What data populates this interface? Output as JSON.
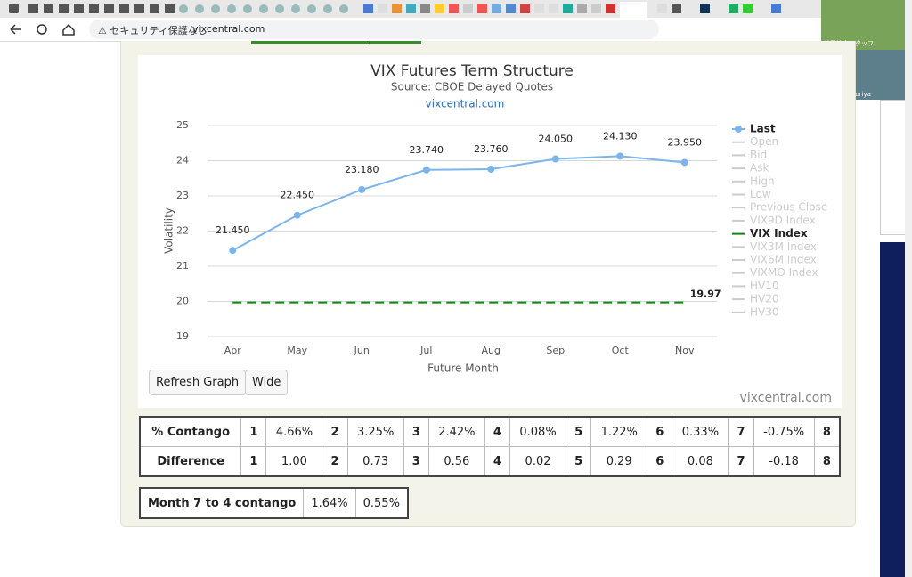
{
  "browser": {
    "security": "セキュリティ保護なし",
    "address": "vixcentral.com"
  },
  "video_call": {
    "participants": [
      "普及協会スタッフ",
      "Fumiaki Moriya"
    ]
  },
  "chart_data": {
    "type": "line",
    "title": "VIX Futures Term Structure",
    "subtitle": "Source: CBOE Delayed Quotes",
    "link": "vixcentral.com",
    "x_label": "Future Month",
    "y_label": "Volatility",
    "categories": [
      "Apr",
      "May",
      "Jun",
      "Jul",
      "Aug",
      "Sep",
      "Oct",
      "Nov"
    ],
    "ylim": [
      19,
      25
    ],
    "yticks": [
      19,
      20,
      21,
      22,
      23,
      24,
      25
    ],
    "grid": true,
    "series": [
      {
        "name": "Last",
        "color": "#7cb5ec",
        "visible": true,
        "dash": false,
        "data_labels": "all",
        "values": [
          21.45,
          22.45,
          23.18,
          23.74,
          23.76,
          24.05,
          24.13,
          23.95
        ],
        "value_labels": [
          "21.450",
          "22.450",
          "23.180",
          "23.740",
          "23.760",
          "24.050",
          "24.130",
          "23.950"
        ]
      },
      {
        "name": "Open",
        "visible": false
      },
      {
        "name": "Bid",
        "visible": false
      },
      {
        "name": "Ask",
        "visible": false
      },
      {
        "name": "High",
        "visible": false
      },
      {
        "name": "Low",
        "visible": false
      },
      {
        "name": "Previous Close",
        "visible": false
      },
      {
        "name": "VIX9D Index",
        "visible": false
      },
      {
        "name": "VIX Index",
        "color": "#0b8a0b",
        "visible": true,
        "dash": true,
        "data_labels": "last",
        "values": [
          19.97,
          19.97,
          19.97,
          19.97,
          19.97,
          19.97,
          19.97,
          19.97
        ]
      },
      {
        "name": "VIX3M Index",
        "visible": false
      },
      {
        "name": "VIX6M Index",
        "visible": false
      },
      {
        "name": "VIXMO Index",
        "visible": false
      },
      {
        "name": "HV10",
        "visible": false
      },
      {
        "name": "HV20",
        "visible": false
      },
      {
        "name": "HV30",
        "visible": false
      }
    ],
    "buttons": [
      "Refresh Graph",
      "Wide"
    ],
    "watermark": "vixcentral.com"
  },
  "contango_table": {
    "rows": [
      [
        "% Contango",
        "1",
        "4.66%",
        "2",
        "3.25%",
        "3",
        "2.42%",
        "4",
        "0.08%",
        "5",
        "1.22%",
        "6",
        "0.33%",
        "7",
        "-0.75%",
        "8"
      ],
      [
        "Difference",
        "1",
        "1.00",
        "2",
        "0.73",
        "3",
        "0.56",
        "4",
        "0.02",
        "5",
        "0.29",
        "6",
        "0.08",
        "7",
        "-0.18",
        "8"
      ]
    ]
  },
  "month_table": {
    "rows": [
      [
        "Month 7 to 4 contango",
        "1.64%",
        "0.55%"
      ]
    ]
  }
}
